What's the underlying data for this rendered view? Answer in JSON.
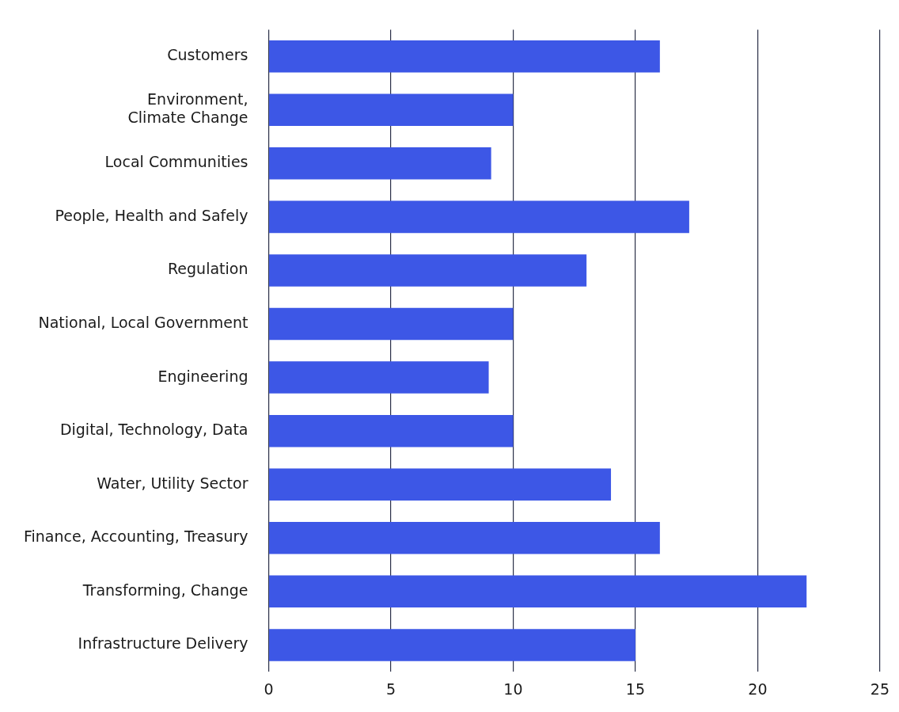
{
  "chart_data": {
    "type": "bar",
    "orientation": "horizontal",
    "categories": [
      "Customers",
      "Environment,\nClimate Change",
      "Local Communities",
      "People, Health and Safely",
      "Regulation",
      "National, Local Government",
      "Engineering",
      "Digital, Technology, Data",
      "Water, Utility Sector",
      "Finance, Accounting, Treasury",
      "Transforming, Change",
      "Infrastructure Delivery"
    ],
    "values": [
      16,
      10,
      9.1,
      17.2,
      13,
      10,
      9,
      10,
      14,
      16,
      22,
      15
    ],
    "color": "#3d57e6",
    "xlim": [
      0,
      25
    ],
    "xticks": [
      0,
      5,
      10,
      15,
      20,
      25
    ],
    "grid": "x",
    "legend": false
  }
}
